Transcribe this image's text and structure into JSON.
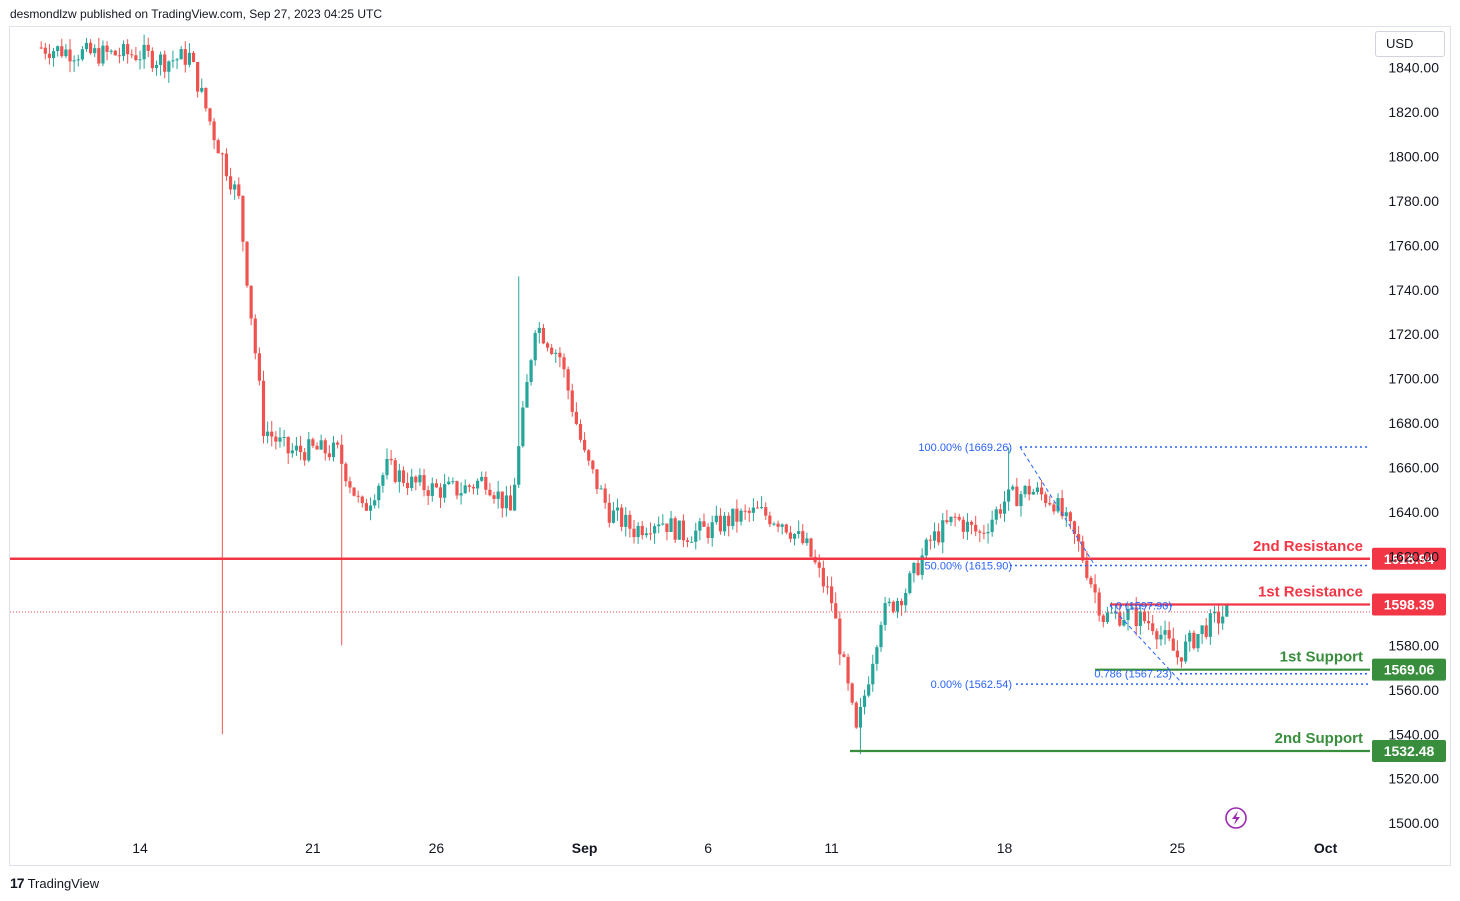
{
  "header": {
    "text": "desmondlzw published on TradingView.com, Sep 27, 2023 04:25 UTC"
  },
  "footer": {
    "logo": "17",
    "brand": "TradingView"
  },
  "currency": "USD",
  "colors": {
    "up": "#26a69a",
    "down": "#ef5350",
    "resistance": "#f23645",
    "support": "#388e3c",
    "fib": "#2962ff",
    "replay_icon": "#9c27b0"
  },
  "icons": {
    "replay": "lightning-icon"
  },
  "levels": [
    {
      "label": "2nd Resistance",
      "value": 1618.94,
      "tag": "1618.94",
      "type": "resistance"
    },
    {
      "label": "1st Resistance",
      "value": 1598.39,
      "tag": "1598.39",
      "type": "resistance"
    },
    {
      "label": "1st Support",
      "value": 1569.06,
      "tag": "1569.06",
      "type": "support"
    },
    {
      "label": "2nd Support",
      "value": 1532.48,
      "tag": "1532.48",
      "type": "support"
    }
  ],
  "fibonacci": [
    {
      "label": "100.00% (1669.26)",
      "value": 1669.26
    },
    {
      "label": "50.00% (1615.90)",
      "value": 1615.9
    },
    {
      "label": "0.00% (1562.54)",
      "value": 1562.54
    },
    {
      "label": "0 (1597.90)",
      "value": 1597.9
    },
    {
      "label": "0.786 (1567.23)",
      "value": 1567.23
    }
  ],
  "chart_data": {
    "type": "candlestick",
    "title": "",
    "xlabel": "",
    "ylabel": "",
    "ylim": [
      1495,
      1848
    ],
    "y_ticks": [
      "1840.00",
      "1820.00",
      "1800.00",
      "1780.00",
      "1760.00",
      "1740.00",
      "1720.00",
      "1700.00",
      "1680.00",
      "1660.00",
      "1640.00",
      "1620.00",
      "1580.00",
      "1560.00",
      "1540.00",
      "1520.00",
      "1500.00"
    ],
    "x_ticks": [
      "14",
      "21",
      "26",
      "Sep",
      "6",
      "11",
      "18",
      "25",
      "Oct"
    ],
    "last_price": 1595.0,
    "series": [
      {
        "name": "",
        "anchors": [
          [
            "2023-08-10",
            1849
          ],
          [
            "2023-08-12",
            1846
          ],
          [
            "2023-08-14",
            1846
          ],
          [
            "2023-08-15",
            1843
          ],
          [
            "2023-08-16",
            1845
          ],
          [
            "2023-08-17",
            1810
          ],
          [
            "2023-08-18",
            1780
          ],
          [
            "2023-08-19",
            1678
          ],
          [
            "2023-08-20",
            1667
          ],
          [
            "2023-08-21",
            1668
          ],
          [
            "2023-08-22",
            1667
          ],
          [
            "2023-08-23",
            1640
          ],
          [
            "2023-08-24",
            1660
          ],
          [
            "2023-08-25",
            1653
          ],
          [
            "2023-08-26",
            1650
          ],
          [
            "2023-08-27",
            1650
          ],
          [
            "2023-08-28",
            1655
          ],
          [
            "2023-08-29",
            1640
          ],
          [
            "2023-08-30",
            1725
          ],
          [
            "2023-08-31",
            1710
          ],
          [
            "2023-09-01",
            1665
          ],
          [
            "2023-09-02",
            1640
          ],
          [
            "2023-09-03",
            1632
          ],
          [
            "2023-09-04",
            1637
          ],
          [
            "2023-09-05",
            1630
          ],
          [
            "2023-09-06",
            1632
          ],
          [
            "2023-09-07",
            1637
          ],
          [
            "2023-09-08",
            1640
          ],
          [
            "2023-09-09",
            1636
          ],
          [
            "2023-09-10",
            1624
          ],
          [
            "2023-09-11",
            1600
          ],
          [
            "2023-09-12",
            1540
          ],
          [
            "2023-09-13",
            1593
          ],
          [
            "2023-09-14",
            1605
          ],
          [
            "2023-09-15",
            1627
          ],
          [
            "2023-09-16",
            1637
          ],
          [
            "2023-09-17",
            1630
          ],
          [
            "2023-09-18",
            1645
          ],
          [
            "2023-09-19",
            1650
          ],
          [
            "2023-09-20",
            1645
          ],
          [
            "2023-09-21",
            1625
          ],
          [
            "2023-09-22",
            1593
          ],
          [
            "2023-09-23",
            1594
          ],
          [
            "2023-09-24",
            1590
          ],
          [
            "2023-09-25",
            1575
          ],
          [
            "2023-09-26",
            1587
          ],
          [
            "2023-09-27",
            1595
          ]
        ]
      }
    ],
    "wick_extremes": [
      {
        "date": "2023-08-17",
        "low": 1540
      },
      {
        "date": "2023-08-22",
        "low": 1580
      },
      {
        "date": "2023-08-29",
        "high": 1746
      },
      {
        "date": "2023-09-12",
        "low": 1531
      },
      {
        "date": "2023-09-18",
        "high": 1669
      }
    ],
    "grid": false
  }
}
